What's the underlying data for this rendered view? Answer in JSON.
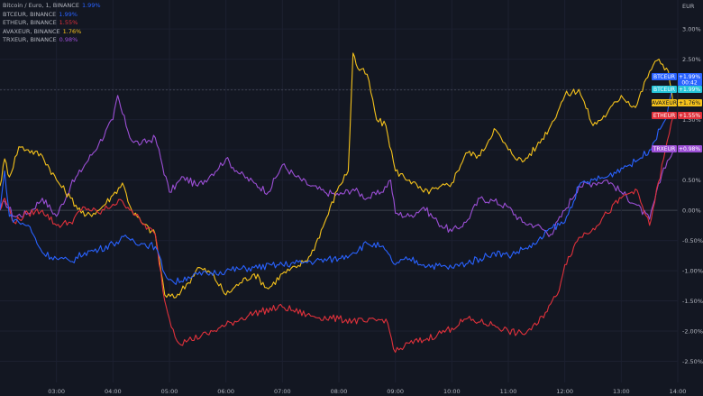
{
  "currency_label": "EUR",
  "legend": [
    {
      "name": "Bitcoin / Euro, 1, BINANCE",
      "value": "1.99%",
      "color": "#2962ff"
    },
    {
      "name": "BTCEUR, BINANCE",
      "value": "1.99%",
      "color": "#2962ff"
    },
    {
      "name": "ETHEUR, BINANCE",
      "value": "1.55%",
      "color": "#e0313b"
    },
    {
      "name": "AVAXEUR, BINANCE",
      "value": "1.76%",
      "color": "#f5c21b"
    },
    {
      "name": "TRXEUR, BINANCE",
      "value": "0.98%",
      "color": "#9c4fd6"
    }
  ],
  "price_tags": [
    {
      "symbol": "BTCEUR",
      "value": "+1.99%",
      "extra": "00:42",
      "bg": "#2962ff",
      "fg": "#ffffff",
      "y": 1.99
    },
    {
      "symbol": "BTCEUR",
      "value": "+1.99%",
      "extra": "",
      "bg": "#26c6da",
      "fg": "#ffffff",
      "y": 1.99
    },
    {
      "symbol": "AVAXEUR",
      "value": "+1.76%",
      "extra": "",
      "bg": "#f5c21b",
      "fg": "#131722",
      "y": 1.76
    },
    {
      "symbol": "ETHEUR",
      "value": "+1.55%",
      "extra": "",
      "bg": "#e0313b",
      "fg": "#ffffff",
      "y": 1.55
    },
    {
      "symbol": "TRXEUR",
      "value": "+0.98%",
      "extra": "",
      "bg": "#9c4fd6",
      "fg": "#ffffff",
      "y": 0.98
    }
  ],
  "chart_data": {
    "type": "line",
    "title": "",
    "xlabel": "",
    "ylabel": "EUR",
    "ylim": [
      -2.85,
      3.3
    ],
    "xlim": [
      "02:00",
      "14:00"
    ],
    "x_ticks": [
      "03:00",
      "04:00",
      "05:00",
      "06:00",
      "07:00",
      "08:00",
      "09:00",
      "10:00",
      "11:00",
      "12:00",
      "13:00",
      "14:00"
    ],
    "y_ticks": [
      "3.00%",
      "2.50%",
      "2.00%",
      "1.50%",
      "1.00%",
      "0.50%",
      "0.00%",
      "-0.50%",
      "-1.00%",
      "-1.50%",
      "-2.00%",
      "-2.50%"
    ],
    "grid": true,
    "legend_position": "top-left",
    "series": [
      {
        "name": "BTCEUR, BINANCE",
        "color": "#2962ff",
        "points": [
          [
            "02:00",
            0.0
          ],
          [
            "02:05",
            0.65
          ],
          [
            "02:10",
            -0.1
          ],
          [
            "02:20",
            -0.2
          ],
          [
            "02:30",
            -0.25
          ],
          [
            "02:45",
            -0.7
          ],
          [
            "03:00",
            -0.8
          ],
          [
            "03:15",
            -0.85
          ],
          [
            "03:30",
            -0.7
          ],
          [
            "03:45",
            -0.65
          ],
          [
            "04:00",
            -0.55
          ],
          [
            "04:15",
            -0.45
          ],
          [
            "04:30",
            -0.55
          ],
          [
            "04:45",
            -0.6
          ],
          [
            "04:55",
            -1.05
          ],
          [
            "05:05",
            -1.2
          ],
          [
            "05:20",
            -1.1
          ],
          [
            "05:40",
            -1.05
          ],
          [
            "06:00",
            -1.0
          ],
          [
            "06:30",
            -0.95
          ],
          [
            "07:00",
            -0.9
          ],
          [
            "07:30",
            -0.85
          ],
          [
            "08:00",
            -0.8
          ],
          [
            "08:15",
            -0.7
          ],
          [
            "08:30",
            -0.55
          ],
          [
            "08:45",
            -0.6
          ],
          [
            "09:00",
            -0.9
          ],
          [
            "09:15",
            -0.8
          ],
          [
            "09:30",
            -0.9
          ],
          [
            "10:00",
            -0.95
          ],
          [
            "10:30",
            -0.8
          ],
          [
            "10:45",
            -0.7
          ],
          [
            "11:00",
            -0.75
          ],
          [
            "11:15",
            -0.65
          ],
          [
            "11:30",
            -0.55
          ],
          [
            "11:45",
            -0.3
          ],
          [
            "12:00",
            -0.2
          ],
          [
            "12:15",
            0.4
          ],
          [
            "12:30",
            0.5
          ],
          [
            "12:45",
            0.55
          ],
          [
            "13:00",
            0.7
          ],
          [
            "13:15",
            0.8
          ],
          [
            "13:30",
            1.0
          ],
          [
            "13:45",
            1.45
          ],
          [
            "13:55",
            1.99
          ]
        ]
      },
      {
        "name": "ETHEUR, BINANCE",
        "color": "#e0313b",
        "points": [
          [
            "02:00",
            0.0
          ],
          [
            "02:05",
            0.2
          ],
          [
            "02:15",
            -0.2
          ],
          [
            "02:30",
            -0.05
          ],
          [
            "02:45",
            0.0
          ],
          [
            "03:00",
            -0.25
          ],
          [
            "03:15",
            -0.2
          ],
          [
            "03:30",
            0.05
          ],
          [
            "03:45",
            -0.05
          ],
          [
            "04:00",
            0.1
          ],
          [
            "04:10",
            0.15
          ],
          [
            "04:20",
            0.0
          ],
          [
            "04:30",
            -0.2
          ],
          [
            "04:45",
            -0.4
          ],
          [
            "04:55",
            -1.5
          ],
          [
            "05:00",
            -1.8
          ],
          [
            "05:10",
            -2.2
          ],
          [
            "05:20",
            -2.15
          ],
          [
            "05:40",
            -2.05
          ],
          [
            "06:00",
            -1.9
          ],
          [
            "06:15",
            -1.8
          ],
          [
            "06:30",
            -1.7
          ],
          [
            "07:00",
            -1.6
          ],
          [
            "07:30",
            -1.75
          ],
          [
            "08:00",
            -1.8
          ],
          [
            "08:30",
            -1.85
          ],
          [
            "08:50",
            -1.8
          ],
          [
            "09:00",
            -2.35
          ],
          [
            "09:15",
            -2.2
          ],
          [
            "09:30",
            -2.15
          ],
          [
            "09:45",
            -2.05
          ],
          [
            "10:00",
            -1.95
          ],
          [
            "10:15",
            -1.8
          ],
          [
            "10:30",
            -1.85
          ],
          [
            "10:45",
            -1.9
          ],
          [
            "11:00",
            -2.0
          ],
          [
            "11:15",
            -2.05
          ],
          [
            "11:30",
            -1.9
          ],
          [
            "11:45",
            -1.55
          ],
          [
            "11:52",
            -1.4
          ],
          [
            "12:00",
            -0.9
          ],
          [
            "12:15",
            -0.45
          ],
          [
            "12:30",
            -0.3
          ],
          [
            "12:45",
            -0.05
          ],
          [
            "13:00",
            0.2
          ],
          [
            "13:15",
            0.35
          ],
          [
            "13:30",
            -0.25
          ],
          [
            "13:45",
            0.85
          ],
          [
            "13:55",
            1.55
          ]
        ]
      },
      {
        "name": "AVAXEUR, BINANCE",
        "color": "#f5c21b",
        "points": [
          [
            "02:00",
            0.4
          ],
          [
            "02:05",
            0.85
          ],
          [
            "02:10",
            0.55
          ],
          [
            "02:20",
            1.05
          ],
          [
            "02:30",
            1.0
          ],
          [
            "02:45",
            0.9
          ],
          [
            "03:00",
            0.5
          ],
          [
            "03:15",
            0.2
          ],
          [
            "03:30",
            -0.1
          ],
          [
            "03:45",
            0.0
          ],
          [
            "04:00",
            0.25
          ],
          [
            "04:10",
            0.45
          ],
          [
            "04:20",
            0.0
          ],
          [
            "04:30",
            -0.2
          ],
          [
            "04:45",
            -0.4
          ],
          [
            "04:55",
            -1.4
          ],
          [
            "05:05",
            -1.45
          ],
          [
            "05:20",
            -1.2
          ],
          [
            "05:30",
            -0.95
          ],
          [
            "05:45",
            -1.05
          ],
          [
            "06:00",
            -1.4
          ],
          [
            "06:15",
            -1.2
          ],
          [
            "06:30",
            -1.05
          ],
          [
            "06:45",
            -1.3
          ],
          [
            "07:00",
            -1.05
          ],
          [
            "07:15",
            -0.95
          ],
          [
            "07:30",
            -0.75
          ],
          [
            "07:45",
            -0.2
          ],
          [
            "08:00",
            0.4
          ],
          [
            "08:10",
            0.65
          ],
          [
            "08:15",
            2.6
          ],
          [
            "08:20",
            2.35
          ],
          [
            "08:30",
            2.25
          ],
          [
            "08:40",
            1.5
          ],
          [
            "08:50",
            1.4
          ],
          [
            "09:00",
            0.65
          ],
          [
            "09:15",
            0.5
          ],
          [
            "09:30",
            0.3
          ],
          [
            "09:45",
            0.35
          ],
          [
            "10:00",
            0.45
          ],
          [
            "10:15",
            0.95
          ],
          [
            "10:30",
            0.9
          ],
          [
            "10:45",
            1.35
          ],
          [
            "11:00",
            1.0
          ],
          [
            "11:15",
            0.8
          ],
          [
            "11:30",
            1.05
          ],
          [
            "11:45",
            1.4
          ],
          [
            "12:00",
            1.9
          ],
          [
            "12:15",
            2.0
          ],
          [
            "12:30",
            1.4
          ],
          [
            "12:45",
            1.6
          ],
          [
            "13:00",
            1.9
          ],
          [
            "13:15",
            1.7
          ],
          [
            "13:30",
            2.3
          ],
          [
            "13:40",
            2.5
          ],
          [
            "13:50",
            2.3
          ],
          [
            "13:55",
            1.76
          ]
        ]
      },
      {
        "name": "TRXEUR, BINANCE",
        "color": "#9c4fd6",
        "points": [
          [
            "02:00",
            0.0
          ],
          [
            "02:05",
            0.15
          ],
          [
            "02:15",
            -0.1
          ],
          [
            "02:30",
            -0.05
          ],
          [
            "02:45",
            0.2
          ],
          [
            "03:00",
            -0.1
          ],
          [
            "03:15",
            0.4
          ],
          [
            "03:30",
            0.75
          ],
          [
            "03:45",
            1.1
          ],
          [
            "04:00",
            1.5
          ],
          [
            "04:05",
            1.9
          ],
          [
            "04:10",
            1.6
          ],
          [
            "04:20",
            1.15
          ],
          [
            "04:30",
            1.1
          ],
          [
            "04:45",
            1.2
          ],
          [
            "05:00",
            0.3
          ],
          [
            "05:15",
            0.55
          ],
          [
            "05:30",
            0.4
          ],
          [
            "05:45",
            0.6
          ],
          [
            "06:00",
            0.85
          ],
          [
            "06:15",
            0.6
          ],
          [
            "06:30",
            0.45
          ],
          [
            "06:45",
            0.3
          ],
          [
            "07:00",
            0.75
          ],
          [
            "07:15",
            0.55
          ],
          [
            "07:30",
            0.4
          ],
          [
            "07:45",
            0.3
          ],
          [
            "08:00",
            0.25
          ],
          [
            "08:15",
            0.35
          ],
          [
            "08:30",
            0.2
          ],
          [
            "08:45",
            0.3
          ],
          [
            "08:55",
            0.5
          ],
          [
            "09:00",
            -0.05
          ],
          [
            "09:15",
            -0.1
          ],
          [
            "09:30",
            0.05
          ],
          [
            "09:45",
            -0.2
          ],
          [
            "10:00",
            -0.35
          ],
          [
            "10:15",
            -0.2
          ],
          [
            "10:30",
            0.2
          ],
          [
            "10:45",
            0.15
          ],
          [
            "11:00",
            0.05
          ],
          [
            "11:15",
            -0.2
          ],
          [
            "11:30",
            -0.25
          ],
          [
            "11:45",
            -0.4
          ],
          [
            "12:00",
            0.0
          ],
          [
            "12:15",
            0.4
          ],
          [
            "12:30",
            0.45
          ],
          [
            "12:45",
            0.5
          ],
          [
            "13:00",
            0.3
          ],
          [
            "13:15",
            0.1
          ],
          [
            "13:30",
            -0.15
          ],
          [
            "13:45",
            0.7
          ],
          [
            "13:55",
            0.98
          ]
        ]
      }
    ]
  }
}
